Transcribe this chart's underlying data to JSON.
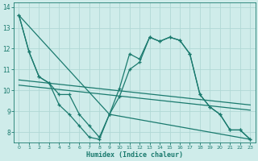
{
  "xlabel": "Humidex (Indice chaleur)",
  "background_color": "#cfecea",
  "grid_color": "#b0d8d5",
  "line_color": "#1a7a6e",
  "xlim": [
    -0.5,
    23.5
  ],
  "ylim": [
    7.5,
    14.2
  ],
  "yticks": [
    8,
    9,
    10,
    11,
    12,
    13,
    14
  ],
  "xticks": [
    0,
    1,
    2,
    3,
    4,
    5,
    6,
    7,
    8,
    9,
    10,
    11,
    12,
    13,
    14,
    15,
    16,
    17,
    18,
    19,
    20,
    21,
    22,
    23
  ],
  "series": [
    {
      "x": [
        0,
        1,
        2,
        3,
        4,
        5,
        6,
        7,
        8,
        9,
        10,
        11,
        12,
        13,
        14,
        15,
        16,
        17,
        18,
        19,
        20,
        21,
        22,
        23
      ],
      "y": [
        13.6,
        11.85,
        10.65,
        10.35,
        9.8,
        9.8,
        8.85,
        8.3,
        7.75,
        8.85,
        10.1,
        11.75,
        11.5,
        12.55,
        12.35,
        12.55,
        12.4,
        11.75,
        9.8,
        9.2,
        8.85,
        8.1,
        8.1,
        7.65
      ],
      "marker": "+",
      "markersize": 3.5,
      "linewidth": 0.9
    },
    {
      "x": [
        0,
        1,
        2,
        3,
        4,
        5,
        6,
        7,
        8,
        9,
        10,
        11,
        12,
        13,
        14,
        15,
        16,
        17,
        18,
        19,
        20,
        21,
        22,
        23
      ],
      "y": [
        13.6,
        11.85,
        10.65,
        10.35,
        9.3,
        8.85,
        8.3,
        7.75,
        7.65,
        8.85,
        9.7,
        11.0,
        11.35,
        12.55,
        12.35,
        12.55,
        12.4,
        11.75,
        9.8,
        9.2,
        8.85,
        8.1,
        8.1,
        7.65
      ],
      "marker": "+",
      "markersize": 3.5,
      "linewidth": 0.9
    },
    {
      "x": [
        0,
        23
      ],
      "y": [
        10.5,
        9.3
      ],
      "marker": null,
      "linewidth": 0.9
    },
    {
      "x": [
        0,
        23
      ],
      "y": [
        10.25,
        9.05
      ],
      "marker": null,
      "linewidth": 0.9
    },
    {
      "x": [
        0,
        9,
        23
      ],
      "y": [
        13.6,
        8.85,
        7.65
      ],
      "marker": null,
      "linewidth": 0.9
    }
  ]
}
